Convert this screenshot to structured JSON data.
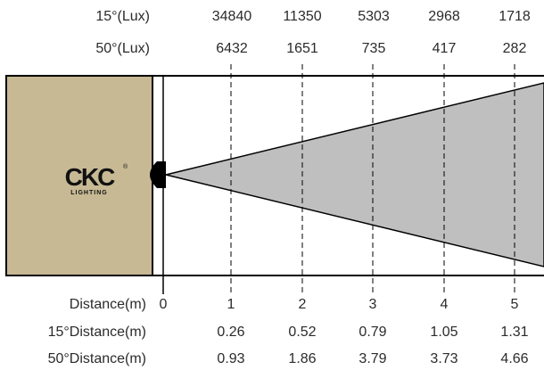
{
  "header_rows": [
    {
      "label": "15°(Lux)",
      "values": [
        "34840",
        "11350",
        "5303",
        "2968",
        "1718"
      ]
    },
    {
      "label": "50°(Lux)",
      "values": [
        "6432",
        "1651",
        "735",
        "417",
        "282"
      ]
    }
  ],
  "footer_rows": [
    {
      "label": "Distance(m)",
      "values": [
        "0",
        "1",
        "2",
        "3",
        "4",
        "5"
      ]
    },
    {
      "label": "15°Distance(m)",
      "values": [
        "0.26",
        "0.52",
        "0.79",
        "1.05",
        "1.31"
      ]
    },
    {
      "label": "50°Distance(m)",
      "values": [
        "0.93",
        "1.86",
        "3.79",
        "3.73",
        "4.66"
      ]
    }
  ],
  "logo": {
    "main": "CKC",
    "sub": "LIGHTING",
    "mark": "®"
  },
  "colors": {
    "panel": "#c7b994",
    "beam": "#bfbfbf",
    "text": "#2b2b2b"
  }
}
